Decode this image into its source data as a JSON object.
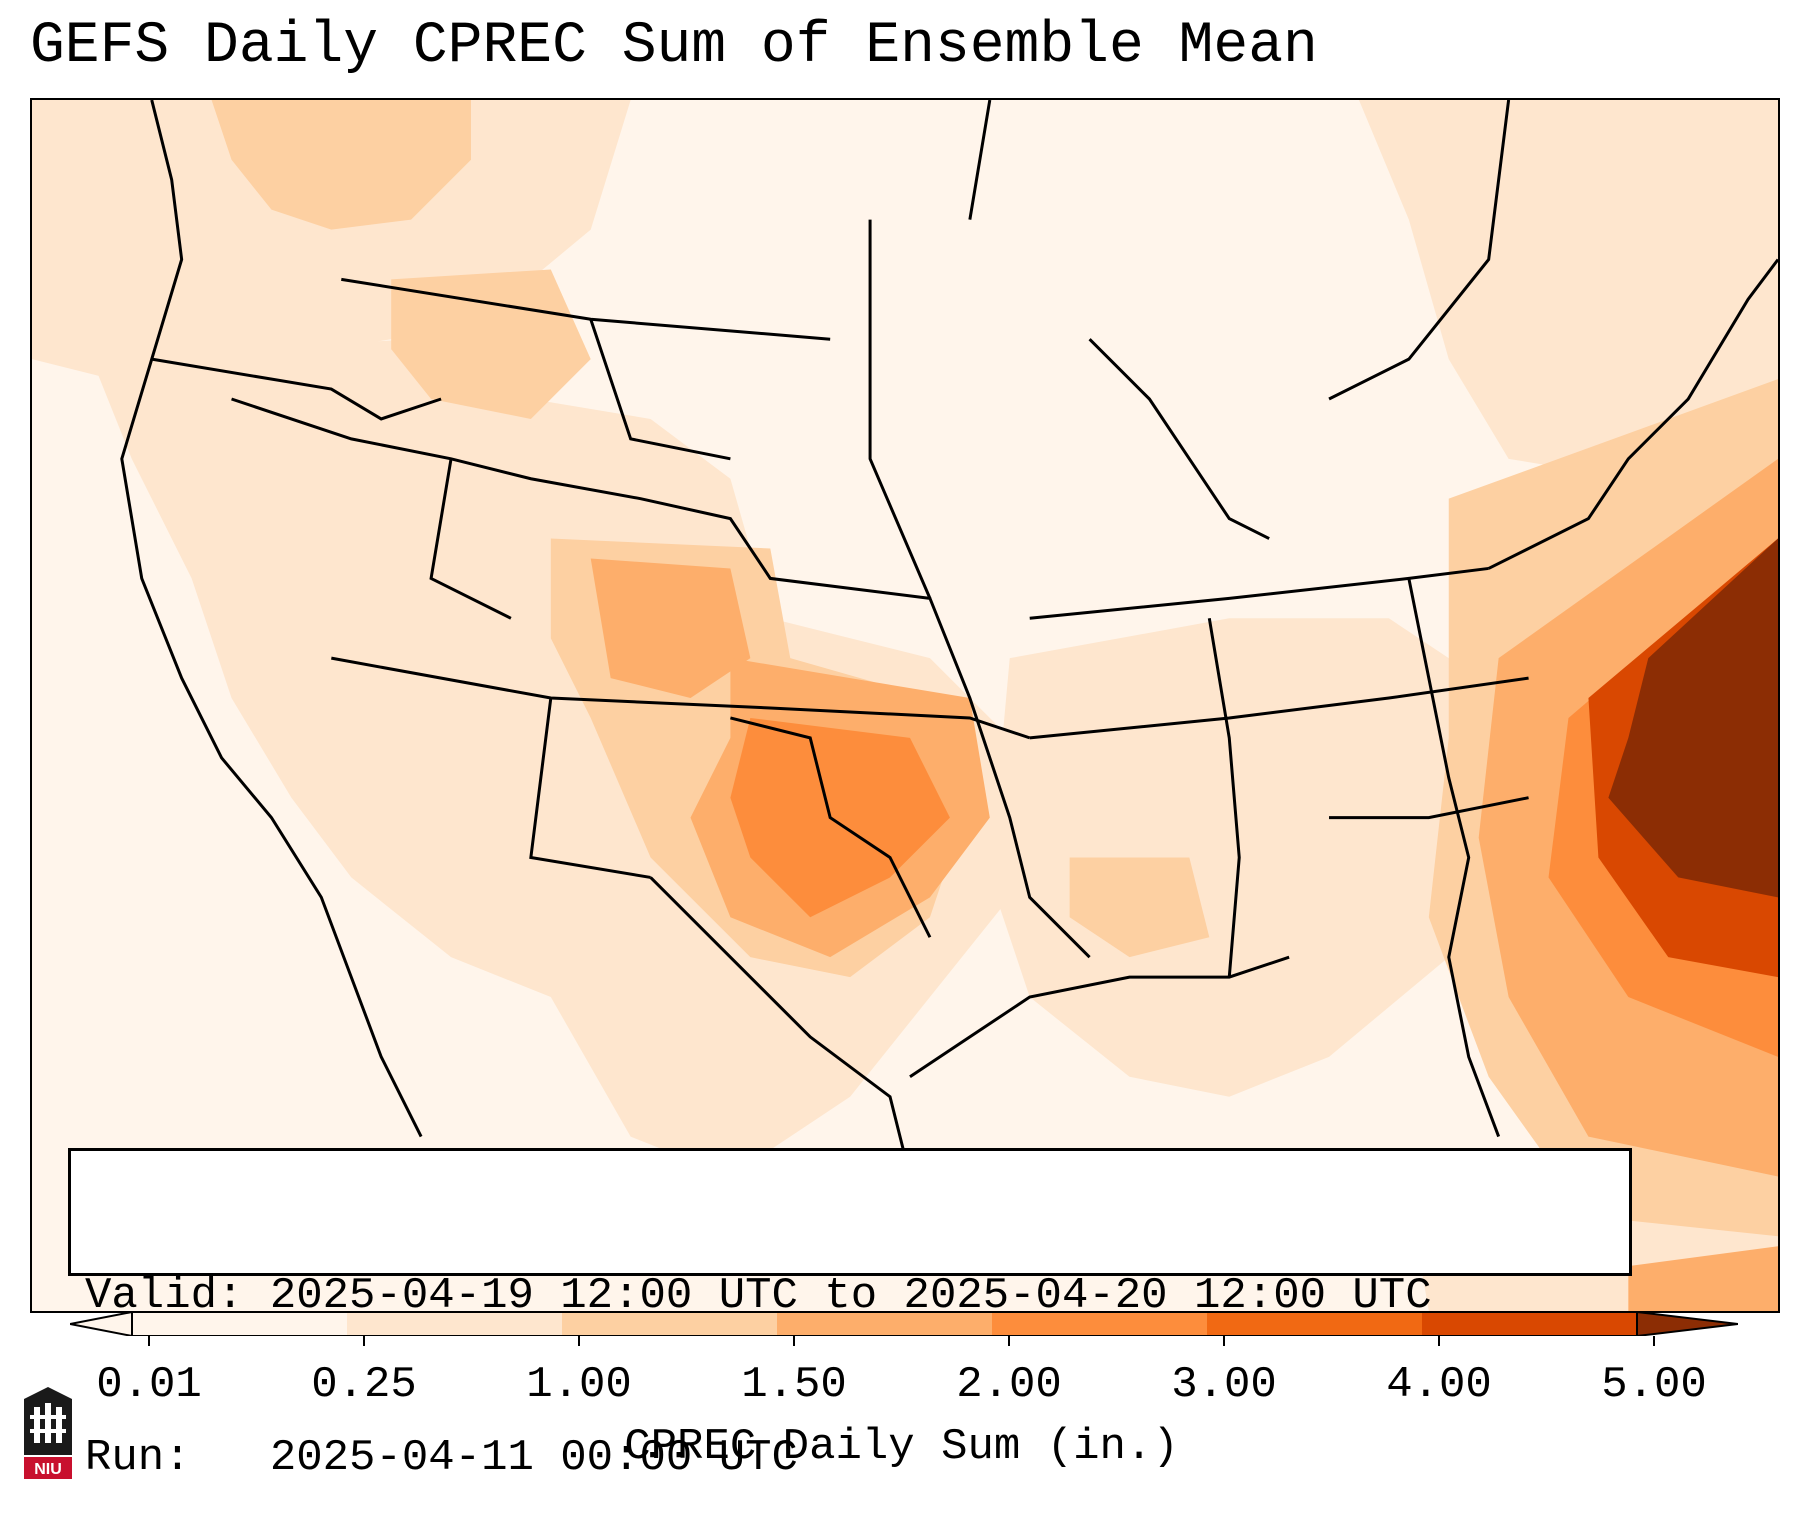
{
  "title": "GEFS Daily CPREC Sum of Ensemble Mean",
  "info": {
    "valid": "Valid: 2025-04-19 12:00 UTC to 2025-04-20 12:00 UTC",
    "run": "Run:   2025-04-11 00:00 UTC"
  },
  "colorbar": {
    "label": "CPREC Daily Sum (in.)",
    "ticks": [
      "0.01",
      "0.25",
      "1.00",
      "1.50",
      "2.00",
      "3.00",
      "4.00",
      "5.00"
    ],
    "colors": [
      "#fff5eb",
      "#fee6ce",
      "#fdd0a2",
      "#fdae6b",
      "#fd8d3c",
      "#f16913",
      "#d94801",
      "#8c2d04"
    ]
  },
  "logo": {
    "text": "NIU"
  }
}
